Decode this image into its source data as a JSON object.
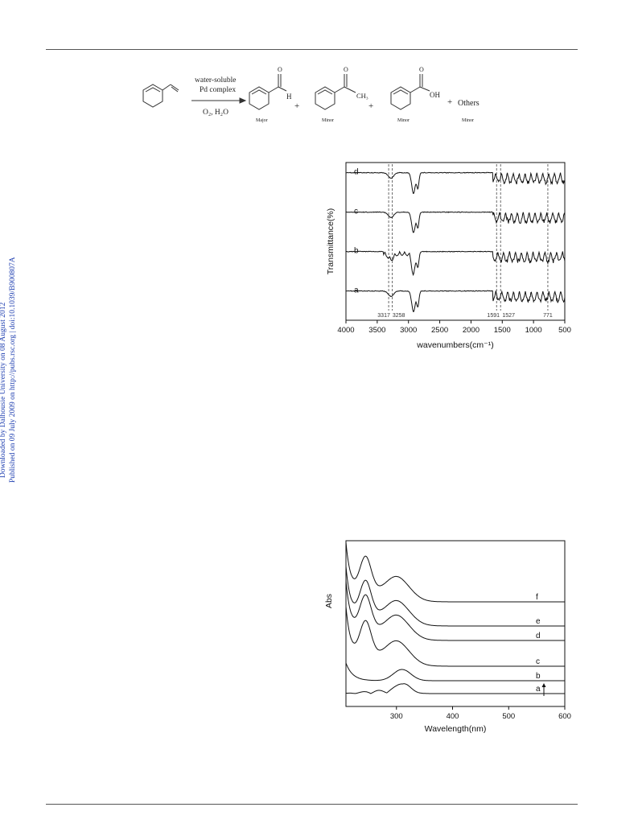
{
  "watermark": {
    "line1": "Downloaded by Dalhousie University on 08 August 2012",
    "line2": "Published on 09 July 2009 on http://pubs.rsc.org | doi:10.1039/B900807A"
  },
  "scheme": {
    "reagent_top_1": "water-soluble",
    "reagent_top_2": "Pd complex",
    "reagent_bottom": "O₂, H₂O",
    "plus": "+",
    "products": [
      {
        "atom_label": "H",
        "tag": "Major"
      },
      {
        "atom_label": "CH₃",
        "tag": "Minor"
      },
      {
        "atom_label": "OH",
        "tag": "Minor"
      }
    ],
    "others": "Others",
    "others_tag": "Minor",
    "carbonyl_o": "O"
  },
  "chart_data": [
    {
      "type": "line",
      "xlabel": "wavenumbers(cm⁻¹)",
      "ylabel": "Transmittance(%)",
      "xlim": [
        4000,
        500
      ],
      "x_reversed": true,
      "x_ticks": [
        4000,
        3500,
        3000,
        2500,
        2000,
        1500,
        1000,
        500
      ],
      "series": [
        {
          "name": "a",
          "offset": 0
        },
        {
          "name": "b",
          "offset": 1
        },
        {
          "name": "c",
          "offset": 2
        },
        {
          "name": "d",
          "offset": 3
        }
      ],
      "annotations": [
        {
          "label": "3317",
          "x": 3317
        },
        {
          "label": "3258",
          "x": 3258
        },
        {
          "label": "1591",
          "x": 1591
        },
        {
          "label": "1527",
          "x": 1527
        },
        {
          "label": "771",
          "x": 771
        }
      ]
    },
    {
      "type": "line",
      "xlabel": "Wavelength(nm)",
      "ylabel": "Abs",
      "xlim": [
        210,
        600
      ],
      "x_ticks": [
        300,
        400,
        500,
        600
      ],
      "series": [
        {
          "name": "a",
          "offset": 0
        },
        {
          "name": "b",
          "offset": 1
        },
        {
          "name": "c",
          "offset": 2
        },
        {
          "name": "d",
          "offset": 3
        },
        {
          "name": "e",
          "offset": 4
        },
        {
          "name": "f",
          "offset": 5
        }
      ],
      "arrow": "up"
    }
  ]
}
